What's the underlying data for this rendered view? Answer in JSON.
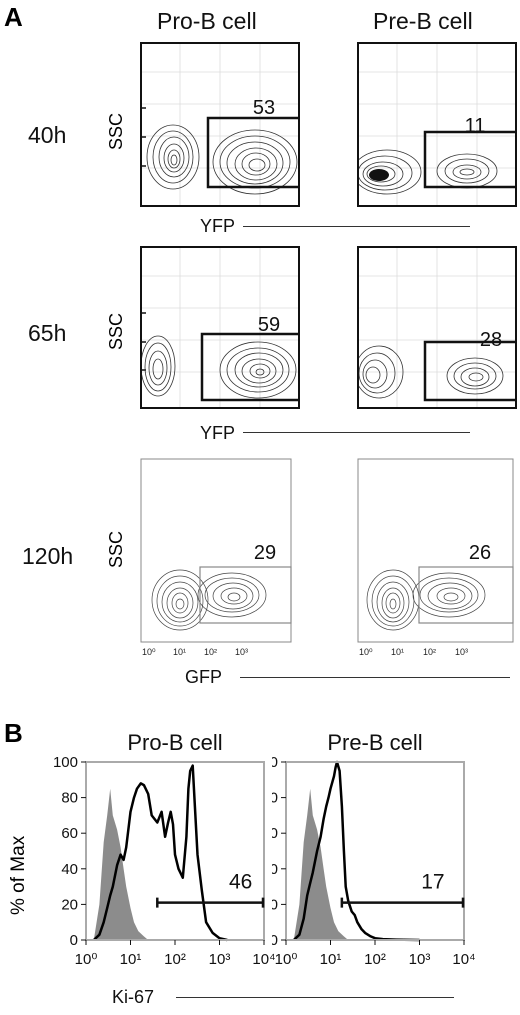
{
  "panels": {
    "A": {
      "letter": "A",
      "columns": [
        "Pro-B cell",
        "Pre-B cell"
      ],
      "rows": [
        {
          "time": "40h",
          "y_label": "SSC",
          "x_label": "YFP",
          "gates": [
            "53",
            "11"
          ]
        },
        {
          "time": "65h",
          "y_label": "SSC",
          "x_label": "YFP",
          "gates": [
            "59",
            "28"
          ]
        },
        {
          "time": "120h",
          "y_label": "SSC",
          "x_label": "GFP",
          "gates": [
            "29",
            "26"
          ]
        }
      ],
      "gfp_ticks": [
        "10⁰",
        "10¹",
        "10²",
        "10³"
      ]
    },
    "B": {
      "letter": "B",
      "y_label": "% of Max",
      "x_label": "Ki-67"
    }
  },
  "chart_data": [
    {
      "type": "contour",
      "panel": "A",
      "row": "40h",
      "series": [
        {
          "name": "Pro-B cell",
          "gate_percent": 53
        },
        {
          "name": "Pre-B cell",
          "gate_percent": 11
        }
      ],
      "ylabel": "SSC",
      "xlabel": "YFP"
    },
    {
      "type": "contour",
      "panel": "A",
      "row": "65h",
      "series": [
        {
          "name": "Pro-B cell",
          "gate_percent": 59
        },
        {
          "name": "Pre-B cell",
          "gate_percent": 28
        }
      ],
      "ylabel": "SSC",
      "xlabel": "YFP"
    },
    {
      "type": "contour",
      "panel": "A",
      "row": "120h",
      "series": [
        {
          "name": "Pro-B cell",
          "gate_percent": 29
        },
        {
          "name": "Pre-B cell",
          "gate_percent": 26
        }
      ],
      "ylabel": "SSC",
      "xlabel": "GFP",
      "xticks": [
        "10⁰",
        "10¹",
        "10²",
        "10³"
      ]
    },
    {
      "type": "line",
      "panel": "B",
      "title": "Pro-B cell",
      "xlabel": "Ki-67",
      "ylabel": "% of Max",
      "xscale": "log",
      "xlim": [
        1,
        10000
      ],
      "ylim": [
        0,
        100
      ],
      "yticks": [
        0,
        20,
        40,
        60,
        80,
        100
      ],
      "xticks": [
        "10⁰",
        "10¹",
        "10²",
        "10³",
        "10⁴"
      ],
      "gate": {
        "label": "46",
        "x_from": 40,
        "x_to": 10000,
        "y": 21
      },
      "series": [
        {
          "kind": "filled",
          "color": "#8c8c8c",
          "x": [
            1.5,
            2,
            2.5,
            3,
            3.5,
            4,
            5,
            6,
            7,
            8,
            10,
            12,
            15,
            20,
            25
          ],
          "y": [
            0,
            20,
            55,
            70,
            85,
            70,
            62,
            52,
            40,
            30,
            18,
            10,
            5,
            2,
            0
          ]
        },
        {
          "kind": "outline",
          "color": "#000000",
          "x": [
            1.5,
            2,
            2.5,
            3,
            3.5,
            4,
            5,
            6,
            7,
            8,
            10,
            12,
            14,
            17,
            20,
            25,
            30,
            40,
            50,
            60,
            70,
            80,
            90,
            100,
            120,
            150,
            180,
            200,
            220,
            250,
            280,
            320,
            400,
            500,
            700,
            1000,
            1500
          ],
          "y": [
            0,
            3,
            10,
            18,
            25,
            30,
            42,
            48,
            45,
            52,
            72,
            80,
            85,
            88,
            87,
            82,
            70,
            66,
            72,
            58,
            66,
            72,
            65,
            48,
            40,
            35,
            58,
            85,
            95,
            98,
            75,
            48,
            28,
            10,
            4,
            1,
            0
          ]
        }
      ]
    },
    {
      "type": "line",
      "panel": "B",
      "title": "Pre-B cell",
      "xlabel": "Ki-67",
      "xscale": "log",
      "xlim": [
        1,
        10000
      ],
      "ylim": [
        0,
        100
      ],
      "yticks": [
        0,
        20,
        40,
        60,
        80,
        100
      ],
      "xticks": [
        "10⁰",
        "10¹",
        "10²",
        "10³",
        "10⁴"
      ],
      "gate": {
        "label": "17",
        "x_from": 18,
        "x_to": 10000,
        "y": 21
      },
      "series": [
        {
          "kind": "filled",
          "color": "#8c8c8c",
          "x": [
            1.5,
            2,
            2.5,
            3,
            3.5,
            4,
            5,
            6,
            7,
            8,
            10,
            12,
            15,
            20,
            25
          ],
          "y": [
            0,
            20,
            55,
            70,
            85,
            70,
            62,
            52,
            40,
            30,
            18,
            10,
            5,
            2,
            0
          ]
        },
        {
          "kind": "outline",
          "color": "#000000",
          "x": [
            1.5,
            2,
            2.5,
            3,
            3.5,
            4,
            5,
            6,
            7,
            8,
            9,
            10,
            12,
            13,
            14,
            16,
            18,
            20,
            22,
            25,
            30,
            35,
            40,
            50,
            60,
            80,
            100,
            150,
            300,
            1000
          ],
          "y": [
            0,
            3,
            12,
            25,
            32,
            38,
            50,
            58,
            68,
            75,
            80,
            85,
            92,
            97,
            100,
            95,
            75,
            50,
            30,
            22,
            16,
            14,
            10,
            6,
            4,
            2,
            1,
            0.5,
            0.2,
            0
          ]
        }
      ]
    }
  ]
}
